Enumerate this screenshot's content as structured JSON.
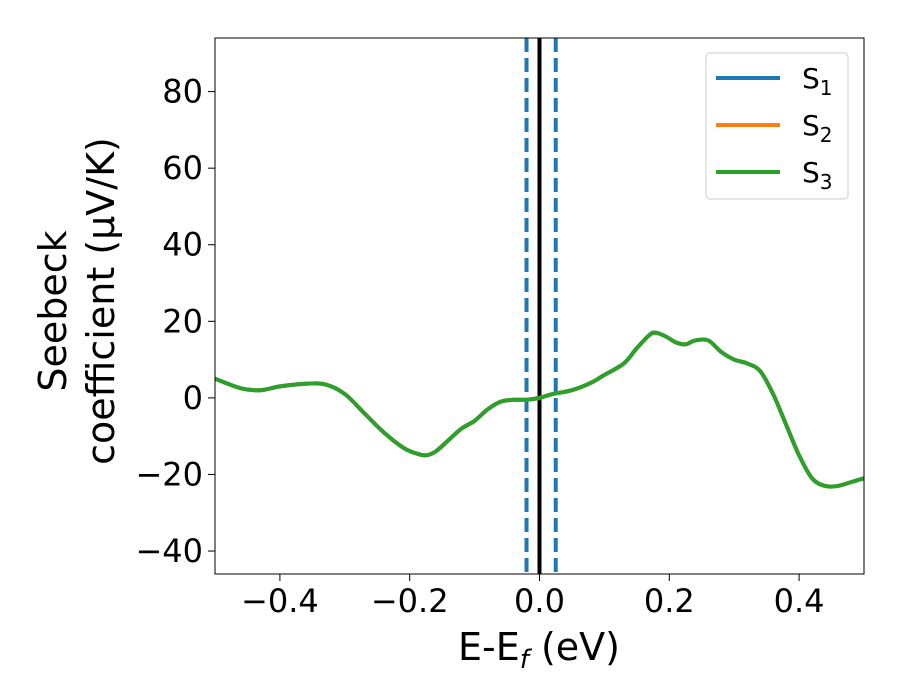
{
  "chart_data": {
    "type": "line",
    "title": "",
    "xlabel": "E-E",
    "xlabel_sub": "f",
    "xlabel_unit": " (eV)",
    "ylabel_line1": "Seebeck",
    "ylabel_line2": "coefficient  (μV/K)",
    "xlim": [
      -0.5,
      0.5
    ],
    "ylim": [
      -46,
      94
    ],
    "xticks": [
      -0.4,
      -0.2,
      0.0,
      0.2,
      0.4
    ],
    "xtick_labels": [
      "−0.4",
      "−0.2",
      "0.0",
      "0.2",
      "0.4"
    ],
    "yticks": [
      -40,
      -20,
      0,
      20,
      40,
      60,
      80
    ],
    "ytick_labels": [
      "−40",
      "−20",
      "0",
      "20",
      "40",
      "60",
      "80"
    ],
    "grid": false,
    "legend_position": "top-right",
    "vertical_lines": [
      {
        "x": -0.02,
        "style": "dashed",
        "color": "#1f77b4"
      },
      {
        "x": 0.0,
        "style": "solid",
        "color": "#000000"
      },
      {
        "x": 0.025,
        "style": "dashed",
        "color": "#1f77b4"
      }
    ],
    "series": [
      {
        "name": "S",
        "sub": "1",
        "color": "#1f77b4",
        "x": [
          -0.5,
          -0.46,
          -0.43,
          -0.4,
          -0.36,
          -0.33,
          -0.3,
          -0.27,
          -0.24,
          -0.21,
          -0.19,
          -0.175,
          -0.16,
          -0.14,
          -0.12,
          -0.1,
          -0.08,
          -0.06,
          -0.04,
          -0.02,
          0.0,
          0.02,
          0.05,
          0.08,
          0.1,
          0.13,
          0.15,
          0.17,
          0.18,
          0.195,
          0.21,
          0.225,
          0.24,
          0.26,
          0.28,
          0.3,
          0.32,
          0.34,
          0.36,
          0.38,
          0.4,
          0.42,
          0.44,
          0.46,
          0.48,
          0.5
        ],
        "y": [
          5,
          2.5,
          2,
          3,
          3.7,
          3.5,
          1,
          -4,
          -9,
          -13,
          -14.5,
          -15,
          -14,
          -11,
          -8,
          -6,
          -3,
          -1,
          -0.5,
          -0.5,
          0,
          1,
          2,
          4,
          6,
          9,
          13,
          16.5,
          17,
          16,
          14.5,
          14,
          15,
          15,
          12,
          10,
          9,
          7,
          1,
          -7,
          -15,
          -21,
          -23,
          -23,
          -22,
          -21
        ],
        "color_note": "hidden under S3"
      },
      {
        "name": "S",
        "sub": "2",
        "color": "#ff7f0e",
        "x": [
          -0.5,
          -0.46,
          -0.43,
          -0.4,
          -0.36,
          -0.33,
          -0.3,
          -0.27,
          -0.24,
          -0.21,
          -0.19,
          -0.175,
          -0.16,
          -0.14,
          -0.12,
          -0.1,
          -0.08,
          -0.06,
          -0.04,
          -0.02,
          0.0,
          0.02,
          0.05,
          0.08,
          0.1,
          0.13,
          0.15,
          0.17,
          0.18,
          0.195,
          0.21,
          0.225,
          0.24,
          0.26,
          0.28,
          0.3,
          0.32,
          0.34,
          0.36,
          0.38,
          0.4,
          0.42,
          0.44,
          0.46,
          0.48,
          0.5
        ],
        "y": [
          5,
          2.5,
          2,
          3,
          3.7,
          3.5,
          1,
          -4,
          -9,
          -13,
          -14.5,
          -15,
          -14,
          -11,
          -8,
          -6,
          -3,
          -1,
          -0.5,
          -0.5,
          0,
          1,
          2,
          4,
          6,
          9,
          13,
          16.5,
          17,
          16,
          14.5,
          14,
          15,
          15,
          12,
          10,
          9,
          7,
          1,
          -7,
          -15,
          -21,
          -23,
          -23,
          -22,
          -21
        ]
      },
      {
        "name": "S",
        "sub": "3",
        "color": "#2ca02c",
        "x": [
          -0.5,
          -0.46,
          -0.43,
          -0.4,
          -0.36,
          -0.33,
          -0.3,
          -0.27,
          -0.24,
          -0.21,
          -0.19,
          -0.175,
          -0.16,
          -0.14,
          -0.12,
          -0.1,
          -0.08,
          -0.06,
          -0.04,
          -0.02,
          0.0,
          0.02,
          0.05,
          0.08,
          0.1,
          0.13,
          0.15,
          0.17,
          0.18,
          0.195,
          0.21,
          0.225,
          0.24,
          0.26,
          0.28,
          0.3,
          0.32,
          0.34,
          0.36,
          0.38,
          0.4,
          0.42,
          0.44,
          0.46,
          0.48,
          0.5
        ],
        "y": [
          5,
          2.5,
          2,
          3,
          3.7,
          3.5,
          1,
          -4,
          -9,
          -13,
          -14.5,
          -15,
          -14,
          -11,
          -8,
          -6,
          -3,
          -1,
          -0.5,
          -0.5,
          0,
          1,
          2,
          4,
          6,
          9,
          13,
          16.5,
          17,
          16,
          14.5,
          14,
          15,
          15,
          12,
          10,
          9,
          7,
          1,
          -7,
          -15,
          -21,
          -23,
          -23,
          -22,
          -21
        ]
      }
    ]
  }
}
